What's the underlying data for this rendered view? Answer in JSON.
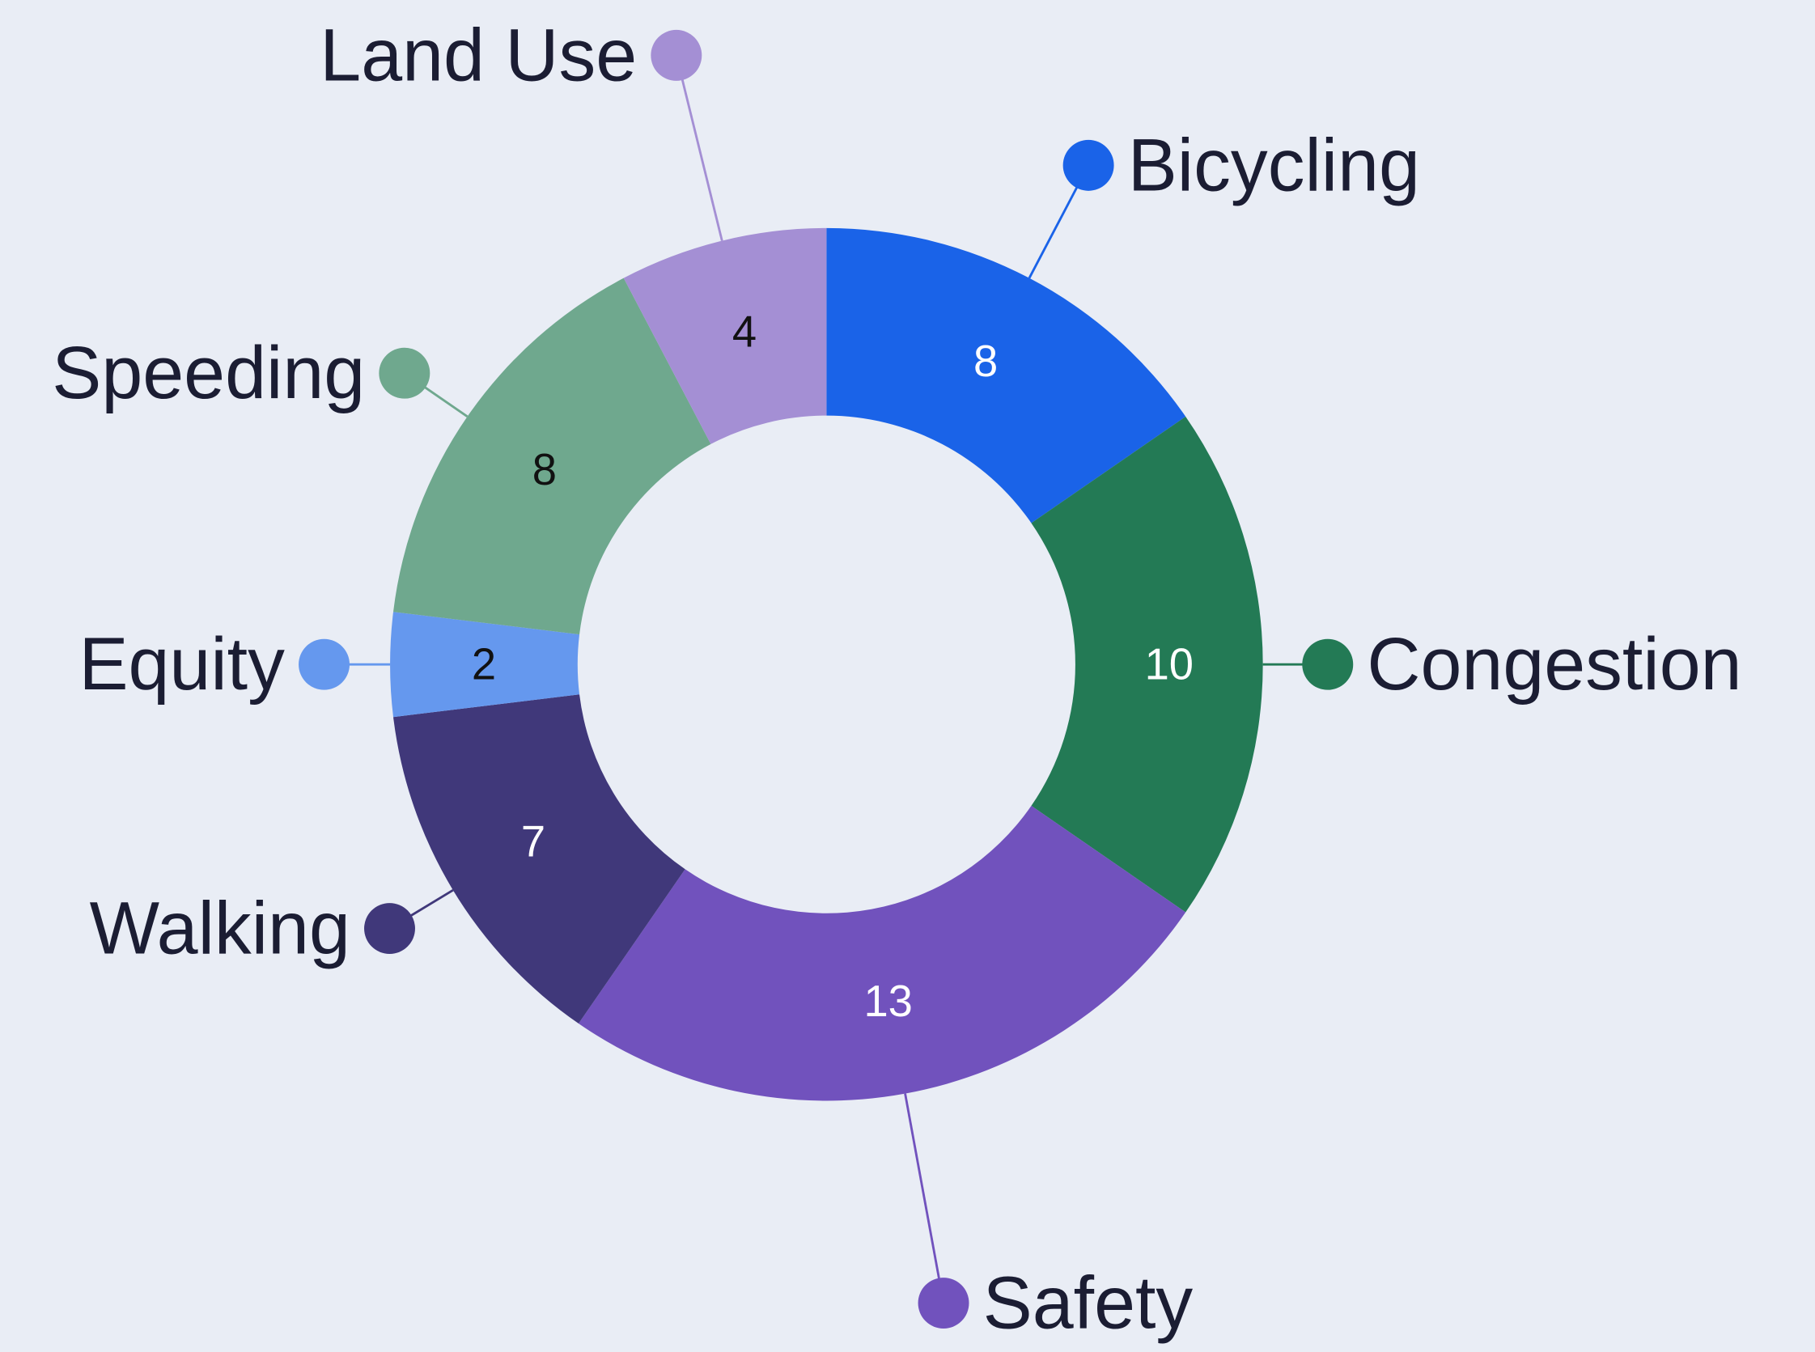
{
  "chart_data": {
    "type": "donut",
    "categories": [
      "Bicycling",
      "Congestion",
      "Safety",
      "Walking",
      "Equity",
      "Speeding",
      "Land Use"
    ],
    "values": [
      8,
      10,
      13,
      7,
      2,
      8,
      4
    ],
    "colors": [
      "#1a63e8",
      "#237a55",
      "#7152bd",
      "#40387a",
      "#6598ee",
      "#6fa88e",
      "#a48fd4"
    ]
  }
}
